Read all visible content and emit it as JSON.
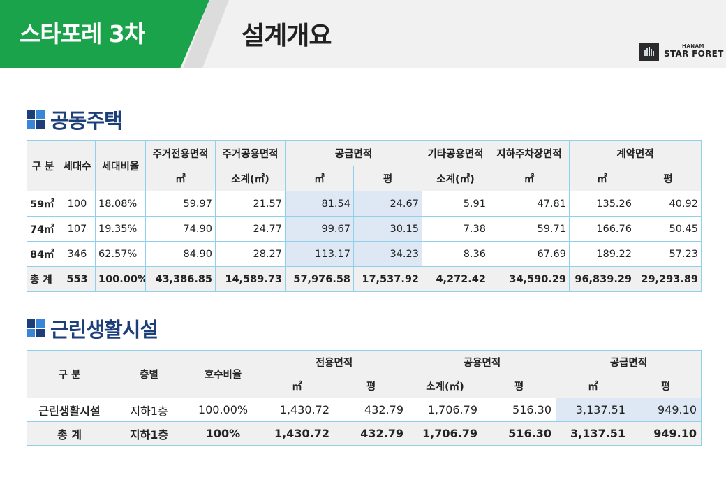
{
  "header": {
    "project": "스타포레 3차",
    "title": "설계개요",
    "logo_small": "HANAM",
    "logo_main": "STAR FORET",
    "green": "#1aa34a"
  },
  "housing": {
    "title": "공동주택",
    "headers": {
      "category": "구 분",
      "households": "세대수",
      "ratio": "세대비율",
      "exclusive": "주거전용면적",
      "shared": "주거공용면적",
      "supply": "공급면적",
      "other_shared": "기타공용면적",
      "parking": "지하주차장면적",
      "contract": "계약면적",
      "sqm": "㎡",
      "subtotal": "소계(㎡)",
      "pyeong": "평"
    },
    "rows": [
      {
        "type": "59㎡",
        "households": "100",
        "ratio": "18.08%",
        "exclusive": "59.97",
        "shared": "21.57",
        "supply_sqm": "81.54",
        "supply_py": "24.67",
        "other": "5.91",
        "parking": "47.81",
        "contract_sqm": "135.26",
        "contract_py": "40.92"
      },
      {
        "type": "74㎡",
        "households": "107",
        "ratio": "19.35%",
        "exclusive": "74.90",
        "shared": "24.77",
        "supply_sqm": "99.67",
        "supply_py": "30.15",
        "other": "7.38",
        "parking": "59.71",
        "contract_sqm": "166.76",
        "contract_py": "50.45"
      },
      {
        "type": "84㎡",
        "households": "346",
        "ratio": "62.57%",
        "exclusive": "84.90",
        "shared": "28.27",
        "supply_sqm": "113.17",
        "supply_py": "34.23",
        "other": "8.36",
        "parking": "67.69",
        "contract_sqm": "189.22",
        "contract_py": "57.23"
      }
    ],
    "total": {
      "type": "총 계",
      "households": "553",
      "ratio": "100.00%",
      "exclusive": "43,386.85",
      "shared": "14,589.73",
      "supply_sqm": "57,976.58",
      "supply_py": "17,537.92",
      "other": "4,272.42",
      "parking": "34,590.29",
      "contract_sqm": "96,839.29",
      "contract_py": "29,293.89"
    }
  },
  "retail": {
    "title": "근린생활시설",
    "headers": {
      "category": "구 분",
      "floor": "층별",
      "ratio": "호수비율",
      "exclusive": "전용면적",
      "shared": "공용면적",
      "supply": "공급면적",
      "sqm": "㎡",
      "pyeong": "평",
      "subtotal": "소계(㎡)"
    },
    "rows": [
      {
        "name": "근린생활시설",
        "floor": "지하1층",
        "ratio": "100.00%",
        "excl_sqm": "1,430.72",
        "excl_py": "432.79",
        "shared_sqm": "1,706.79",
        "shared_py": "516.30",
        "supply_sqm": "3,137.51",
        "supply_py": "949.10"
      }
    ],
    "total": {
      "name": "총  계",
      "floor": "지하1층",
      "ratio": "100%",
      "excl_sqm": "1,430.72",
      "excl_py": "432.79",
      "shared_sqm": "1,706.79",
      "shared_py": "516.30",
      "supply_sqm": "3,137.51",
      "supply_py": "949.10"
    }
  }
}
